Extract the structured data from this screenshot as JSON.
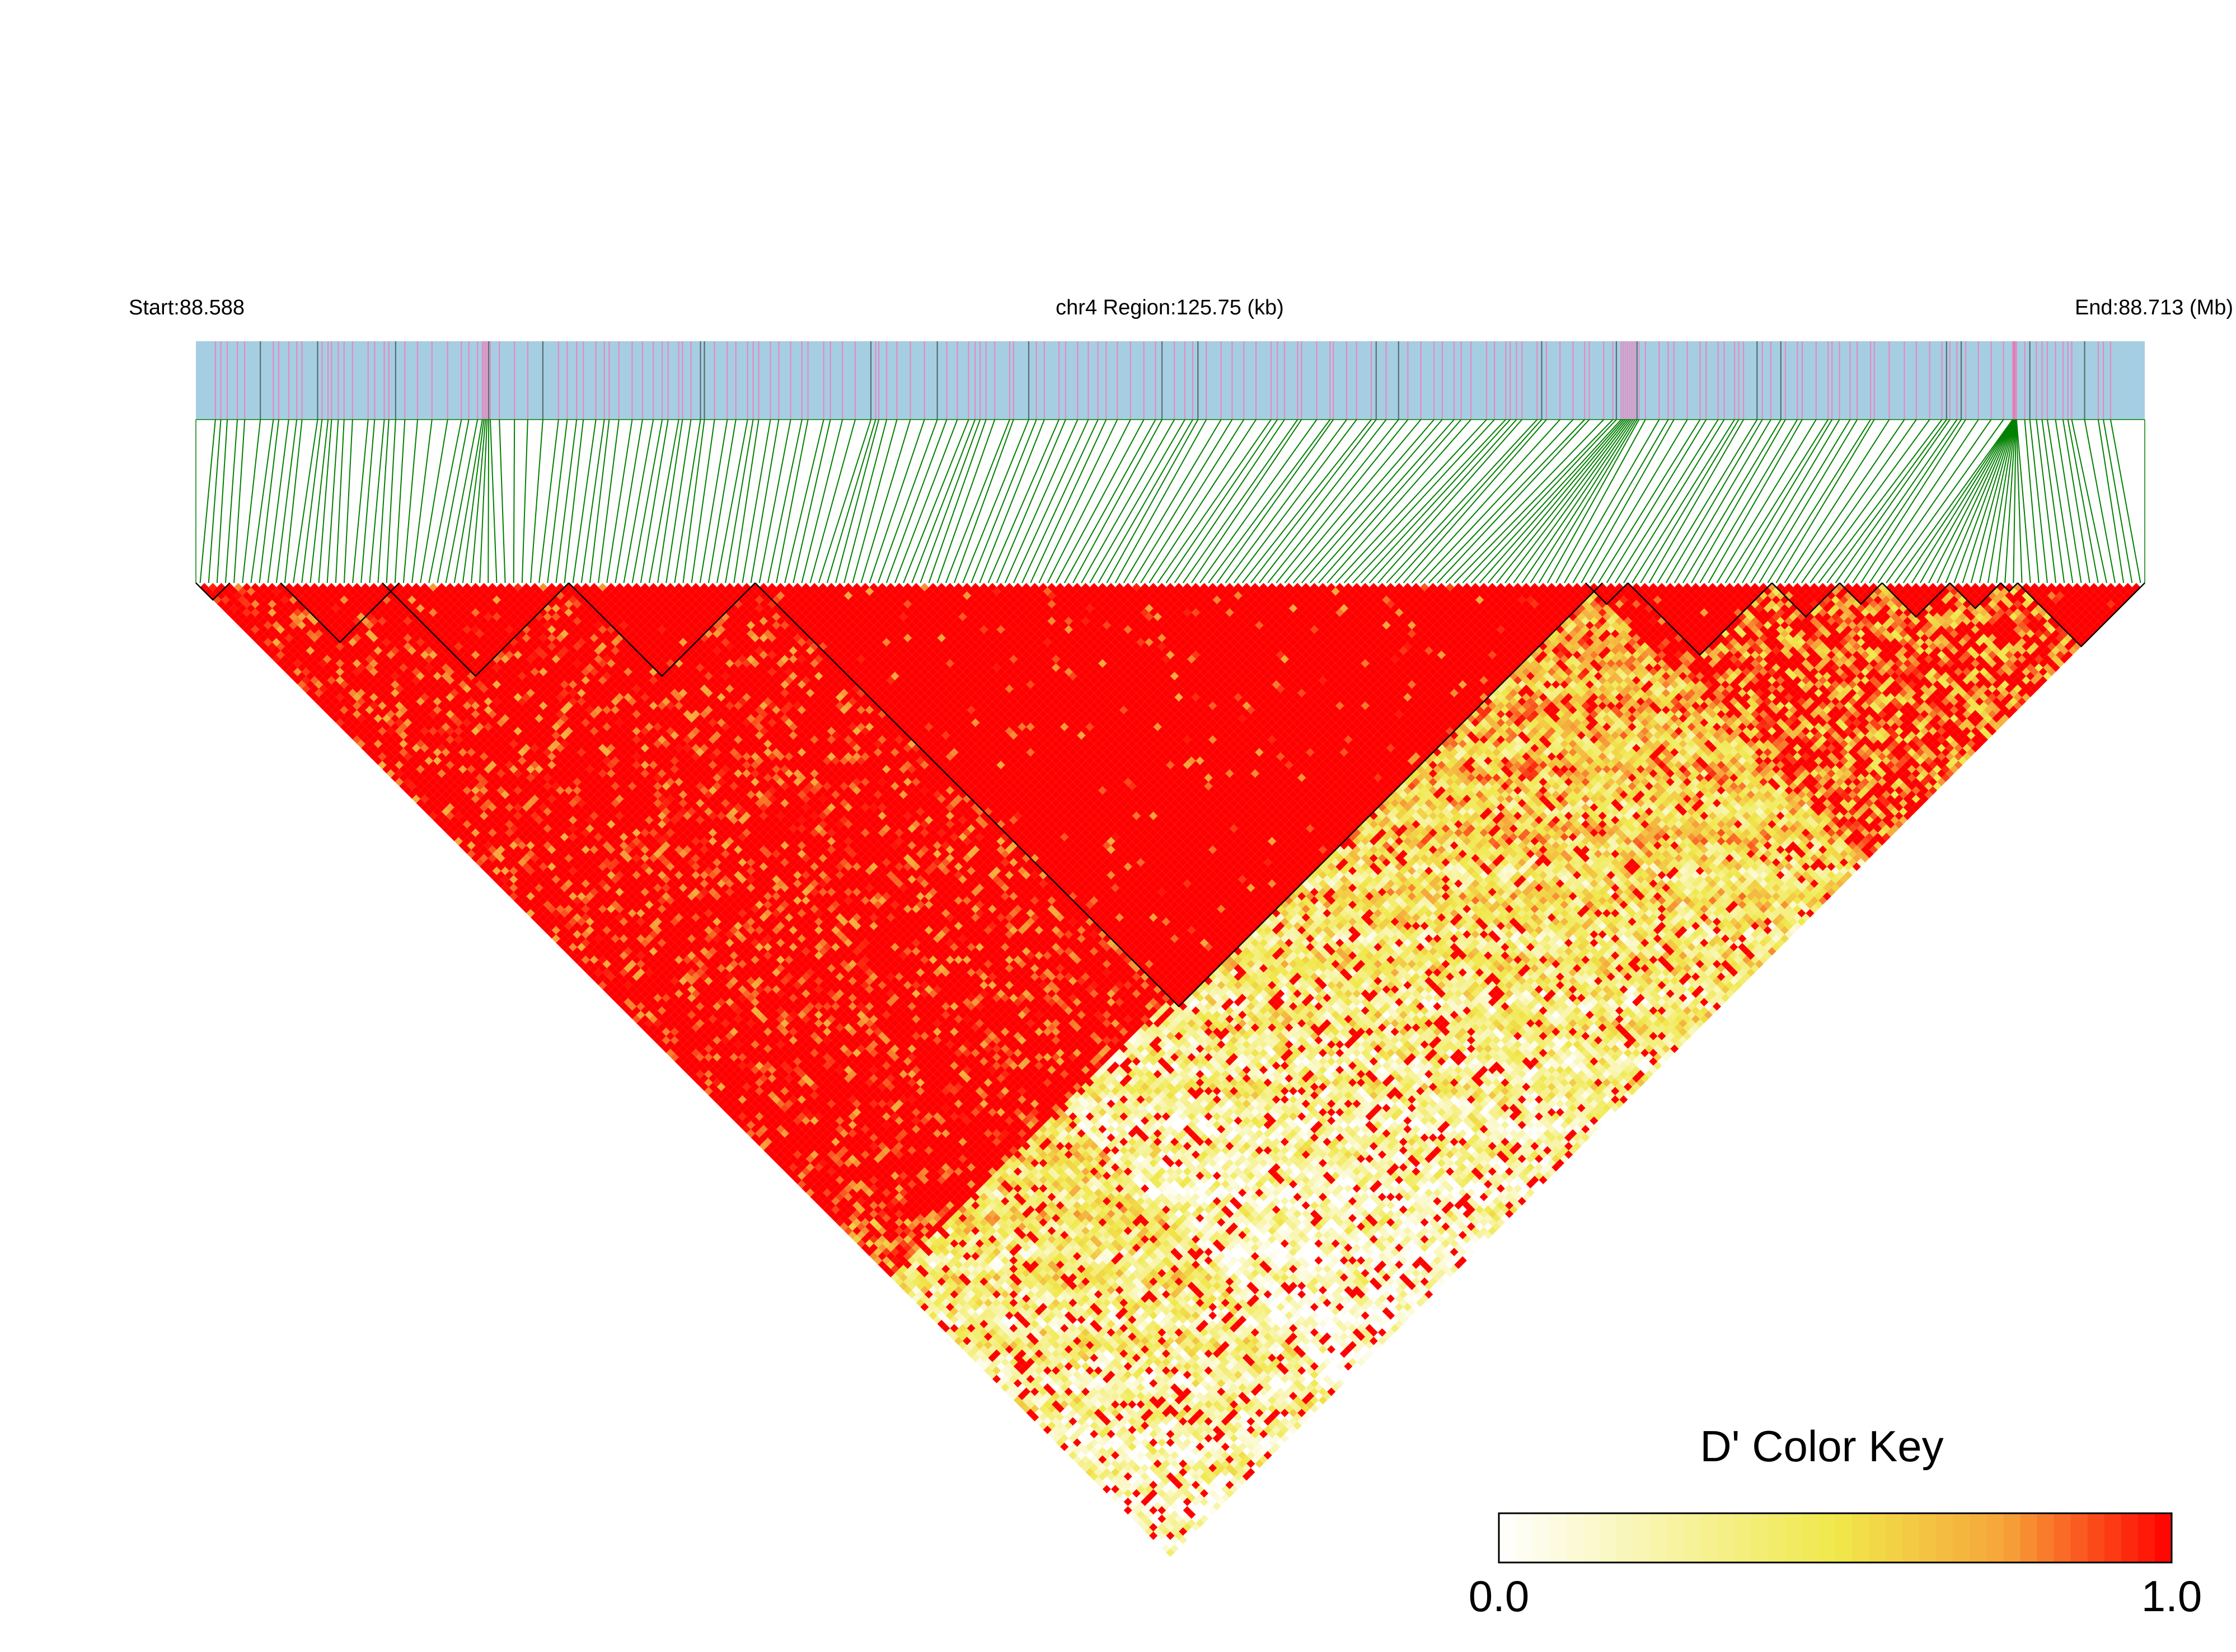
{
  "chart_data": {
    "type": "heatmap",
    "subtype": "linkage-disequilibrium-triangle",
    "chromosome": "chr4",
    "header": {
      "start_label": "Start:88.588",
      "region_label": "chr4 Region:125.75 (kb)",
      "end_label": "End:88.713 (Mb)"
    },
    "region": {
      "start_mb": 88.588,
      "end_mb": 88.713,
      "length_kb": 125.75
    },
    "metric": "D'",
    "legend": {
      "title": "D' Color Key",
      "min_label": "0.0",
      "max_label": "1.0",
      "range": [
        0.0,
        1.0
      ],
      "placement": "bottom-right",
      "colors": [
        "#ffffff",
        "#f0e84a",
        "#f6a53a",
        "#ff0000"
      ]
    },
    "colors": {
      "annotation_track": "#a6cee3",
      "snp_marker_pink": "#e58ac0",
      "snp_marker_dark": "#5a6e6e",
      "connector": "#008000",
      "block_outline": "#000000",
      "ld_high": "#ff0000"
    },
    "snp_count": 230,
    "haplotype_blocks": [
      {
        "snp_start": 0,
        "snp_end": 4
      },
      {
        "snp_start": 10,
        "snp_end": 24
      },
      {
        "snp_start": 22,
        "snp_end": 44
      },
      {
        "snp_start": 44,
        "snp_end": 66
      },
      {
        "snp_start": 66,
        "snp_end": 166
      },
      {
        "snp_start": 164,
        "snp_end": 169
      },
      {
        "snp_start": 169,
        "snp_end": 186
      },
      {
        "snp_start": 186,
        "snp_end": 194
      },
      {
        "snp_start": 194,
        "snp_end": 199
      },
      {
        "snp_start": 199,
        "snp_end": 207
      },
      {
        "snp_start": 207,
        "snp_end": 213
      },
      {
        "snp_start": 213,
        "snp_end": 215
      },
      {
        "snp_start": 215,
        "snp_end": 230
      }
    ]
  }
}
